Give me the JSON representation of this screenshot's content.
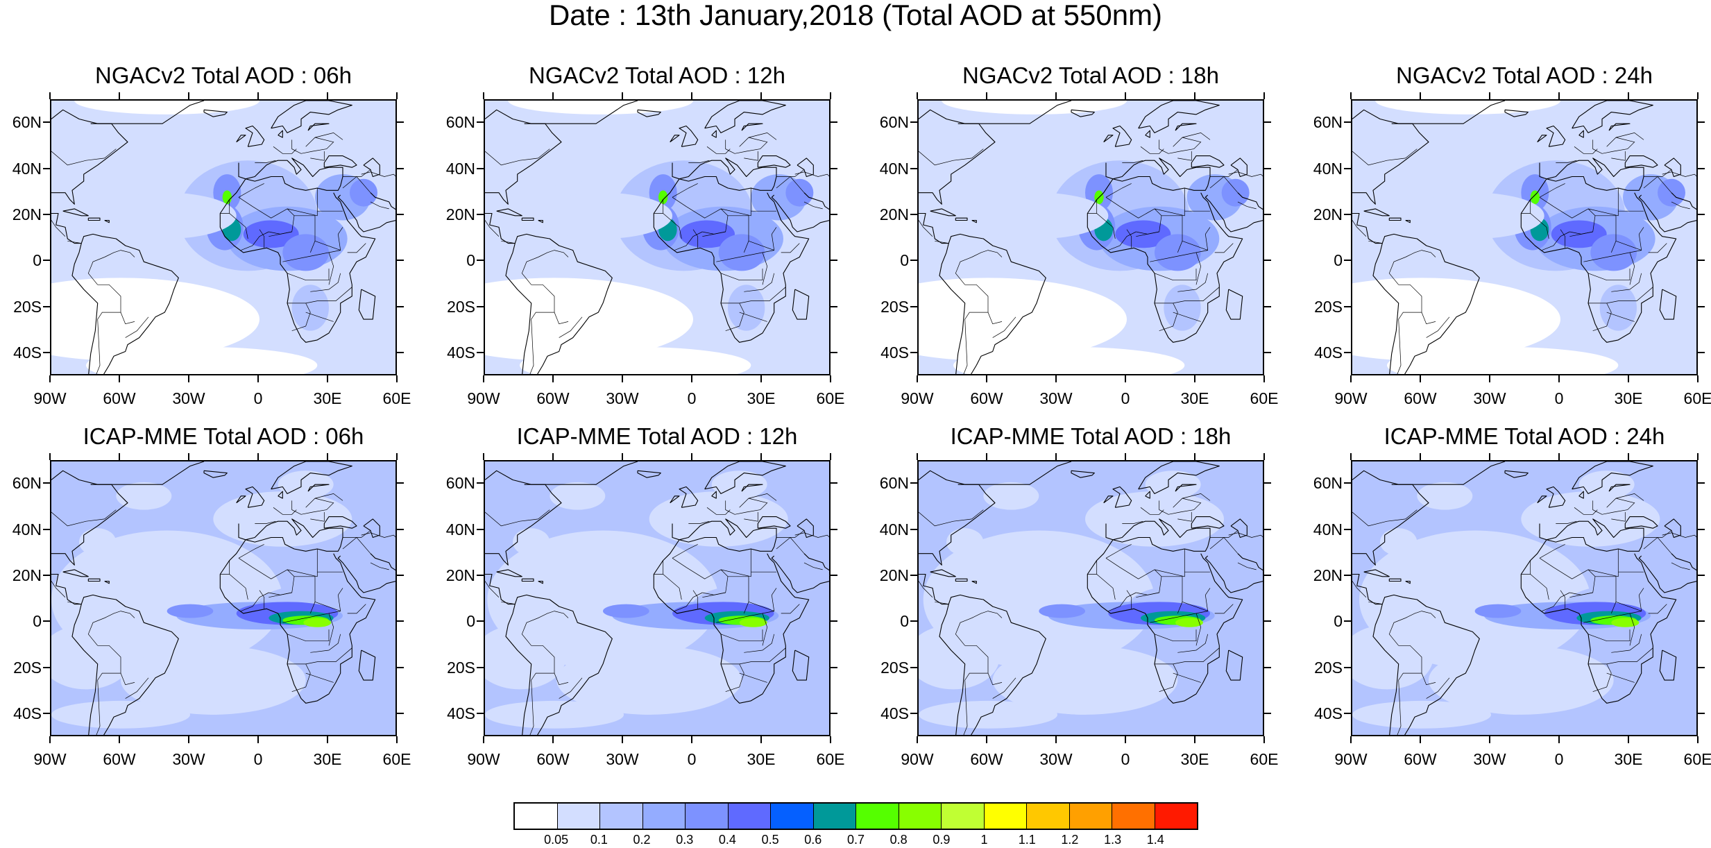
{
  "title": "Date : 13th January,2018 (Total AOD at 550nm)",
  "panels": [
    {
      "title": "NGACv2 Total AOD : 06h",
      "model": "NGACv2",
      "hour": "06h"
    },
    {
      "title": "NGACv2 Total AOD : 12h",
      "model": "NGACv2",
      "hour": "12h"
    },
    {
      "title": "NGACv2 Total AOD : 18h",
      "model": "NGACv2",
      "hour": "18h"
    },
    {
      "title": "NGACv2 Total AOD : 24h",
      "model": "NGACv2",
      "hour": "24h"
    },
    {
      "title": "ICAP-MME Total AOD : 06h",
      "model": "ICAP-MME",
      "hour": "06h"
    },
    {
      "title": "ICAP-MME Total AOD : 12h",
      "model": "ICAP-MME",
      "hour": "12h"
    },
    {
      "title": "ICAP-MME Total AOD : 18h",
      "model": "ICAP-MME",
      "hour": "18h"
    },
    {
      "title": "ICAP-MME Total AOD : 24h",
      "model": "ICAP-MME",
      "hour": "24h"
    }
  ],
  "lat_labels": [
    "60N",
    "40N",
    "20N",
    "0",
    "20S",
    "40S"
  ],
  "lon_labels": [
    "90W",
    "60W",
    "30W",
    "0",
    "30E",
    "60E"
  ],
  "colorbar": {
    "labels": [
      "0.05",
      "0.1",
      "0.2",
      "0.3",
      "0.4",
      "0.5",
      "0.6",
      "0.7",
      "0.8",
      "0.9",
      "1",
      "1.1",
      "1.2",
      "1.3",
      "1.4"
    ],
    "colors": [
      "#ffffff",
      "#d3deff",
      "#b3c4ff",
      "#94acff",
      "#7d92ff",
      "#5f6aff",
      "#0560ff",
      "#009999",
      "#55ff00",
      "#88ff00",
      "#c0ff33",
      "#ffff00",
      "#ffc800",
      "#ffa000",
      "#ff7000",
      "#ff1a00"
    ]
  }
}
